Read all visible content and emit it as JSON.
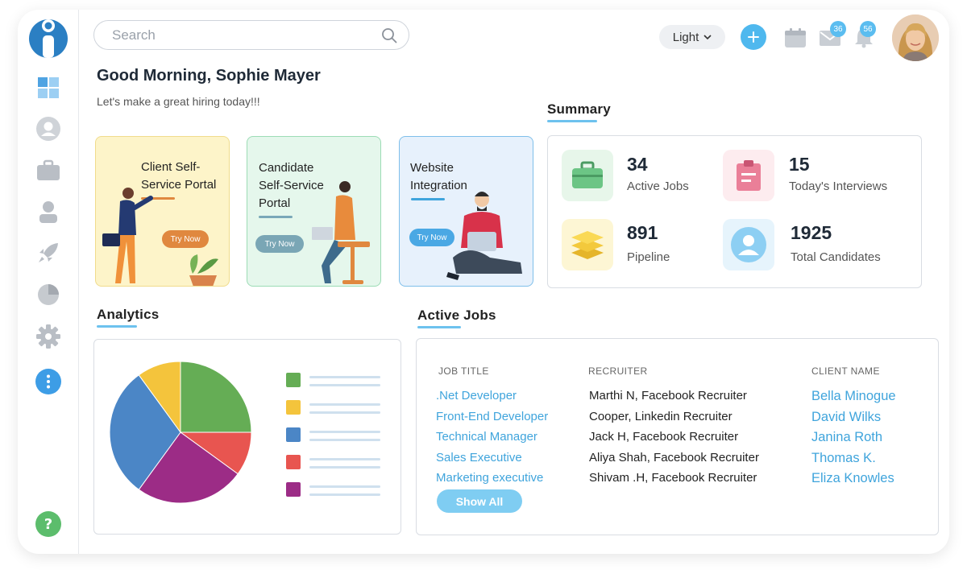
{
  "search": {
    "placeholder": "Search"
  },
  "header": {
    "theme_label": "Light",
    "mail_badge": "36",
    "notif_badge": "56"
  },
  "greeting": {
    "title": "Good Morning, Sophie Mayer",
    "subtitle": "Let's make a great hiring today!!!"
  },
  "promos": [
    {
      "title_line1": "Client Self-",
      "title_line2": "Service Portal",
      "button": "Try Now"
    },
    {
      "title_line1": "Candidate",
      "title_line2": "Self-Service",
      "title_line3": "Portal",
      "button": "Try Now"
    },
    {
      "title_line1": "Website",
      "title_line2": "Integration",
      "button": "Try Now"
    }
  ],
  "summary": {
    "title": "Summary",
    "stats": [
      {
        "value": "34",
        "label": "Active Jobs"
      },
      {
        "value": "15",
        "label": "Today's Interviews"
      },
      {
        "value": "891",
        "label": "Pipeline"
      },
      {
        "value": "1925",
        "label": "Total Candidates"
      }
    ]
  },
  "analytics": {
    "title": "Analytics",
    "chart_data": {
      "type": "pie",
      "values": [
        25,
        10,
        25,
        30,
        10
      ],
      "colors": [
        "#65ad55",
        "#e85550",
        "#9c2c86",
        "#4b86c6",
        "#f4c43c"
      ],
      "legend_colors": [
        "#65ad55",
        "#f4c43c",
        "#4b86c6",
        "#e85550",
        "#9c2c86"
      ]
    }
  },
  "active_jobs": {
    "title": "Active Jobs",
    "headers": {
      "job": "JOB TITLE",
      "recruiter": "RECRUITER",
      "client": "CLIENT NAME"
    },
    "rows": [
      {
        "job": ".Net Developer",
        "recruiter": "Marthi N, Facebook Recruiter",
        "client": "Bella Minogue"
      },
      {
        "job": "Front-End Developer",
        "recruiter": "Cooper, Linkedin Recruiter",
        "client": "David Wilks"
      },
      {
        "job": "Technical Manager",
        "recruiter": "Jack H, Facebook Recruiter",
        "client": "Janina Roth"
      },
      {
        "job": "Sales Executive",
        "recruiter": "Aliya Shah, Facebook Recruiter",
        "client": "Thomas K."
      },
      {
        "job": "Marketing executive",
        "recruiter": "Shivam .H, Facebook Recruiter",
        "client": "Eliza Knowles"
      }
    ],
    "show_all": "Show All"
  },
  "colors": {
    "accent": "#4fb8ee",
    "link": "#3fa4dc"
  }
}
